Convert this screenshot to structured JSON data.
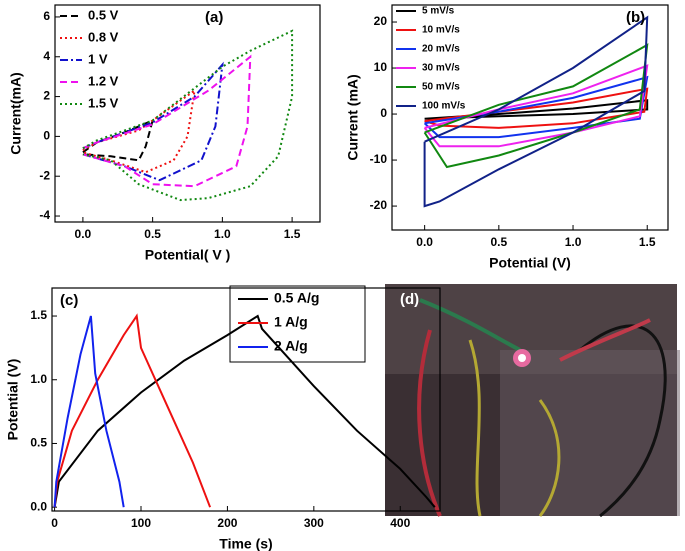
{
  "chart_data": [
    {
      "type": "line",
      "panel_label": "(a)",
      "xlabel": "Potential( V )",
      "ylabel": "Current(mA)",
      "xlim": [
        -0.2,
        1.7
      ],
      "ylim": [
        -4.3,
        6.6
      ],
      "xticks": [
        {
          "value": 0,
          "label": "0.0"
        },
        {
          "value": 0.5,
          "label": "0.5"
        },
        {
          "value": 1,
          "label": "1.0"
        },
        {
          "value": 1.5,
          "label": "1.5"
        }
      ],
      "yticks": [
        -4,
        -2,
        0,
        2,
        4,
        6
      ],
      "legend": "upper-left",
      "series": [
        {
          "name": "0.5 V",
          "color": "#000000",
          "linestyle": "dashed",
          "x": [
            0,
            0.1,
            0.3,
            0.5,
            0.45,
            0.4,
            0.2,
            0
          ],
          "values": [
            -0.8,
            -0.3,
            0.2,
            0.8,
            -0.5,
            -1.2,
            -1,
            -0.9
          ]
        },
        {
          "name": "0.8 V",
          "color": "#ee1111",
          "linestyle": "dotted",
          "x": [
            0,
            0.1,
            0.4,
            0.6,
            0.8,
            0.75,
            0.65,
            0.45,
            0.2,
            0
          ],
          "values": [
            -0.7,
            -0.3,
            0.3,
            1.3,
            2.3,
            0,
            -1.2,
            -1.8,
            -1.2,
            -0.8
          ]
        },
        {
          "name": "1 V",
          "color": "#1111cc",
          "linestyle": "dashdot",
          "x": [
            0,
            0.1,
            0.5,
            0.8,
            1.0,
            0.95,
            0.85,
            0.55,
            0.3,
            0
          ],
          "values": [
            -0.6,
            -0.3,
            0.7,
            2,
            3.6,
            0.5,
            -1.2,
            -2.2,
            -1.5,
            -0.9
          ]
        },
        {
          "name": "1.2 V",
          "color": "#ee11ee",
          "linestyle": "dashed",
          "x": [
            0,
            0.1,
            0.5,
            0.9,
            1.2,
            1.18,
            1.1,
            0.8,
            0.5,
            0.3,
            0
          ],
          "values": [
            -0.6,
            -0.3,
            0.6,
            2.3,
            4.0,
            0.5,
            -1.5,
            -2.5,
            -2.4,
            -1.5,
            -0.9
          ]
        },
        {
          "name": "1.5 V",
          "color": "#118811",
          "linestyle": "dotted",
          "x": [
            0,
            0.1,
            0.5,
            1.0,
            1.2,
            1.5,
            1.5,
            1.4,
            1.2,
            0.9,
            0.7,
            0.4,
            0.2,
            0
          ],
          "values": [
            -0.6,
            -0.2,
            0.8,
            3.5,
            4.3,
            5.3,
            2,
            -1,
            -2.5,
            -3.1,
            -3.2,
            -2.4,
            -1.2,
            -0.9
          ]
        }
      ]
    },
    {
      "type": "line",
      "panel_label": "(b)",
      "xlabel": "Potential (V)",
      "ylabel": "Current (mA)",
      "xlim": [
        -0.22,
        1.64
      ],
      "ylim": [
        -25.2,
        23.7
      ],
      "xticks": [
        {
          "value": 0,
          "label": "0.0"
        },
        {
          "value": 0.5,
          "label": "0.5"
        },
        {
          "value": 1,
          "label": "1.0"
        },
        {
          "value": 1.5,
          "label": "1.5"
        }
      ],
      "yticks": [
        -20,
        -10,
        0,
        10,
        20
      ],
      "legend": "upper-left",
      "series": [
        {
          "name": "5 mV/s",
          "color": "#000000",
          "linestyle": "solid",
          "x": [
            0,
            0.5,
            1.0,
            1.5,
            1.5,
            1.0,
            0.5,
            0
          ],
          "values": [
            -1,
            0,
            1.2,
            3,
            1,
            0,
            -0.5,
            -1
          ]
        },
        {
          "name": "10 mV/s",
          "color": "#ee1111",
          "linestyle": "solid",
          "x": [
            0,
            0.5,
            1.0,
            1.5,
            1.48,
            1.0,
            0.5,
            0.1,
            0
          ],
          "values": [
            -1.5,
            0.5,
            2.5,
            5.5,
            0.5,
            -2,
            -3,
            -2.5,
            -1.5
          ]
        },
        {
          "name": "20 mV/s",
          "color": "#1133ee",
          "linestyle": "solid",
          "x": [
            0,
            0.5,
            1.0,
            1.5,
            1.45,
            1.0,
            0.5,
            0.1,
            0
          ],
          "values": [
            -2,
            0.5,
            3.5,
            8,
            -1,
            -3,
            -5,
            -5,
            -2
          ]
        },
        {
          "name": "30 mV/s",
          "color": "#ee22ee",
          "linestyle": "solid",
          "x": [
            0,
            0.5,
            1.0,
            1.5,
            1.45,
            1.0,
            0.5,
            0.1,
            0
          ],
          "values": [
            -3,
            1,
            4.5,
            10.5,
            -0.5,
            -4,
            -7,
            -7,
            -3
          ]
        },
        {
          "name": "50 mV/s",
          "color": "#118811",
          "linestyle": "solid",
          "x": [
            0,
            0.5,
            1.0,
            1.5,
            1.45,
            1.0,
            0.5,
            0.15,
            0
          ],
          "values": [
            -4,
            2,
            6,
            15,
            1,
            -4,
            -9,
            -11.5,
            -4
          ]
        },
        {
          "name": "100 mV/s",
          "color": "#112288",
          "linestyle": "solid",
          "x": [
            0,
            0.5,
            1.0,
            1.5,
            1.48,
            1.0,
            0.5,
            0.1,
            0,
            0
          ],
          "values": [
            -6,
            1,
            10,
            21,
            5,
            -4,
            -12,
            -19,
            -20,
            -6
          ]
        }
      ]
    },
    {
      "type": "line",
      "panel_label": "(c)",
      "xlabel": "Time (s)",
      "ylabel": "Potential (V)",
      "xlim": [
        -3,
        446
      ],
      "ylim": [
        -0.03,
        1.72
      ],
      "xticks": [
        0,
        100,
        200,
        300,
        400
      ],
      "yticks": [
        {
          "value": 0,
          "label": "0.0"
        },
        {
          "value": 0.5,
          "label": "0.5"
        },
        {
          "value": 1,
          "label": "1.0"
        },
        {
          "value": 1.5,
          "label": "1.5"
        }
      ],
      "legend": "upper-right",
      "series": [
        {
          "name": "0.5 A/g",
          "color": "#000000",
          "linestyle": "solid",
          "x": [
            0,
            5,
            50,
            100,
            150,
            200,
            235,
            240,
            300,
            350,
            400,
            430,
            440
          ],
          "values": [
            0,
            0.2,
            0.6,
            0.9,
            1.15,
            1.35,
            1.5,
            1.4,
            0.95,
            0.6,
            0.3,
            0.08,
            0
          ]
        },
        {
          "name": "1 A/g",
          "color": "#ee1111",
          "linestyle": "solid",
          "x": [
            0,
            3,
            20,
            50,
            80,
            95,
            100,
            130,
            160,
            180
          ],
          "values": [
            0,
            0.2,
            0.6,
            1.0,
            1.35,
            1.5,
            1.25,
            0.8,
            0.35,
            0
          ]
        },
        {
          "name": "2 A/g",
          "color": "#1122ee",
          "linestyle": "solid",
          "x": [
            0,
            2,
            15,
            30,
            42,
            47,
            60,
            75,
            80
          ],
          "values": [
            0,
            0.2,
            0.7,
            1.2,
            1.5,
            1.05,
            0.6,
            0.2,
            0
          ]
        }
      ]
    }
  ],
  "photo": {
    "label": "(d)"
  }
}
